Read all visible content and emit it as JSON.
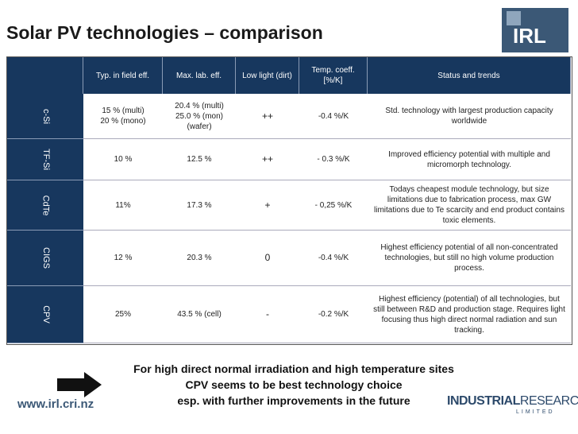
{
  "header": {
    "title": "Solar PV technologies – comparison",
    "logo": "IRL"
  },
  "table": {
    "columns": [
      "Typ. in field eff.",
      "Max. lab. eff.",
      "Low light (dirt)",
      "Temp. coeff. [%/K]",
      "Status and trends"
    ],
    "rows": [
      {
        "label": "c-Si",
        "cells": [
          [
            "15 % (multi)",
            "20 % (mono)"
          ],
          [
            "20.4 % (multi)",
            "25.0 % (mon)",
            "(wafer)"
          ],
          "++",
          "-0.4 %/K",
          "Std. technology with largest production capacity worldwide"
        ]
      },
      {
        "label": "TF-Si",
        "cells": [
          "10 %",
          "12.5 %",
          "++",
          "- 0.3 %/K",
          "Improved efficiency potential with multiple and micromorph technology."
        ]
      },
      {
        "label": "CdTe",
        "cells": [
          "11%",
          "17.3 %",
          "+",
          "- 0,25 %/K",
          "Todays cheapest module technology, but size limitations due to fabrication process, max GW limitations due to Te scarcity and end product contains toxic elements."
        ]
      },
      {
        "label": "CIGS",
        "cells": [
          "12 %",
          "20.3 %",
          "0",
          "-0.4 %/K",
          "Highest efficiency potential of all non-concentrated technologies, but still no high volume production process."
        ]
      },
      {
        "label": "CPV",
        "cells": [
          "25%",
          "43.5 % (cell)",
          "-",
          "-0.2 %/K",
          "Highest efficiency (potential) of all technologies, but still between R&D and production stage. Requires light focusing thus high direct normal radiation and sun tracking."
        ]
      }
    ]
  },
  "footer": {
    "lines": [
      "For high direct normal irradiation and high temperature sites",
      "CPV seems to be best technology choice",
      "esp. with further improvements in the future"
    ],
    "url": "www.irl.cri.nz",
    "brand_bold": "INDUSTRIAL",
    "brand_light": "RESEARCH",
    "brand_sub": "LIMITED"
  }
}
